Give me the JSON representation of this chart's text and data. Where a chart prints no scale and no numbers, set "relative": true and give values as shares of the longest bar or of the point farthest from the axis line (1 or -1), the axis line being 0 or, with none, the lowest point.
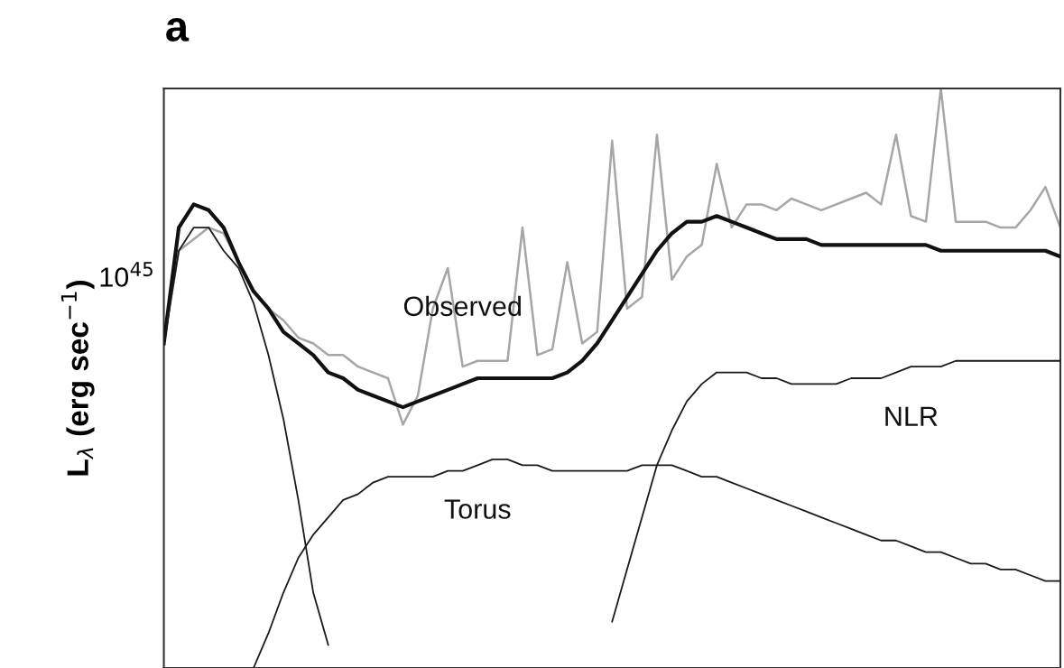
{
  "chart_data": {
    "type": "line",
    "title": "a",
    "ylabel": "L$_{λ}$ (erg sec$^{−1}$)",
    "relative": true,
    "grid": false,
    "legend": false,
    "marker": "none",
    "line_style": "solid",
    "annotations": [
      "10$^{45}$"
    ],
    "categories": [
      null,
      null,
      null,
      null,
      null,
      null,
      null,
      null,
      null,
      null,
      null,
      null,
      null,
      null,
      null,
      null,
      null,
      null,
      null,
      null,
      null,
      null,
      null,
      null,
      null,
      null,
      null,
      null,
      null,
      null,
      null,
      null,
      null,
      null,
      null,
      null,
      null,
      null,
      null,
      null,
      null,
      null,
      null,
      null,
      null,
      null,
      null,
      null,
      null,
      null,
      null,
      null,
      null,
      null,
      null,
      null,
      null,
      null,
      null,
      null,
      null
    ],
    "series": [
      {
        "name": "Observed",
        "color": "#a6a6a6",
        "values": [
          0.56,
          0.72,
          0.74,
          0.76,
          0.75,
          0.7,
          0.65,
          0.62,
          0.6,
          0.57,
          0.56,
          0.54,
          0.54,
          0.52,
          0.51,
          0.5,
          0.42,
          0.47,
          0.62,
          0.69,
          0.52,
          0.53,
          0.53,
          0.53,
          0.76,
          0.54,
          0.55,
          0.7,
          0.56,
          0.58,
          0.91,
          0.62,
          0.64,
          0.92,
          0.67,
          0.71,
          0.73,
          0.87,
          0.76,
          0.8,
          0.8,
          0.79,
          0.81,
          0.8,
          0.79,
          0.8,
          0.81,
          0.82,
          0.8,
          0.92,
          0.78,
          0.77,
          1.0,
          0.77,
          0.77,
          0.77,
          0.76,
          0.76,
          0.79,
          0.83,
          0.76
        ]
      },
      {
        "color": "#111111",
        "values": [
          0.56,
          0.76,
          0.8,
          0.79,
          0.76,
          0.7,
          0.65,
          0.62,
          0.58,
          0.56,
          0.54,
          0.51,
          0.5,
          0.48,
          0.47,
          0.46,
          0.45,
          0.46,
          0.47,
          0.48,
          0.49,
          0.5,
          0.5,
          0.5,
          0.5,
          0.5,
          0.5,
          0.51,
          0.53,
          0.56,
          0.6,
          0.64,
          0.68,
          0.72,
          0.75,
          0.77,
          0.77,
          0.78,
          0.77,
          0.76,
          0.75,
          0.74,
          0.74,
          0.74,
          0.73,
          0.73,
          0.73,
          0.73,
          0.73,
          0.73,
          0.73,
          0.73,
          0.72,
          0.72,
          0.72,
          0.72,
          0.72,
          0.72,
          0.72,
          0.72,
          0.71
        ]
      },
      {
        "color": "#1a1a1a",
        "values": [
          0.56,
          0.72,
          0.76,
          0.76,
          0.72,
          0.69,
          0.63,
          0.54,
          0.43,
          0.29,
          0.13,
          0.04,
          null,
          null,
          null,
          null,
          null,
          null,
          null,
          null,
          null,
          null,
          null,
          null,
          null,
          null,
          null,
          null,
          null,
          null,
          null,
          null,
          null,
          null,
          null,
          null,
          null,
          null,
          null,
          null,
          null,
          null,
          null,
          null,
          null,
          null,
          null,
          null,
          null,
          null,
          null,
          null,
          null,
          null,
          null,
          null,
          null,
          null,
          null,
          null,
          null
        ]
      },
      {
        "name": "Torus",
        "color": "#1a1a1a",
        "values": [
          null,
          null,
          null,
          null,
          null,
          null,
          0.0,
          0.06,
          0.13,
          0.19,
          0.23,
          0.26,
          0.29,
          0.3,
          0.32,
          0.33,
          0.33,
          0.33,
          0.33,
          0.34,
          0.34,
          0.35,
          0.36,
          0.36,
          0.35,
          0.35,
          0.34,
          0.34,
          0.34,
          0.34,
          0.34,
          0.34,
          0.35,
          0.35,
          0.35,
          0.34,
          0.33,
          0.33,
          0.32,
          0.31,
          0.3,
          0.29,
          0.28,
          0.27,
          0.26,
          0.25,
          0.24,
          0.23,
          0.22,
          0.22,
          0.21,
          0.2,
          0.2,
          0.19,
          0.18,
          0.18,
          0.17,
          0.17,
          0.16,
          0.15,
          0.15
        ]
      },
      {
        "name": "NLR",
        "color": "#1a1a1a",
        "values": [
          null,
          null,
          null,
          null,
          null,
          null,
          null,
          null,
          null,
          null,
          null,
          null,
          null,
          null,
          null,
          null,
          null,
          null,
          null,
          null,
          null,
          null,
          null,
          null,
          null,
          null,
          null,
          null,
          null,
          null,
          0.08,
          0.17,
          0.26,
          0.35,
          0.41,
          0.46,
          0.49,
          0.51,
          0.51,
          0.51,
          0.5,
          0.5,
          0.49,
          0.49,
          0.49,
          0.49,
          0.5,
          0.5,
          0.5,
          0.51,
          0.52,
          0.52,
          0.52,
          0.53,
          0.53,
          0.53,
          0.53,
          0.53,
          0.53,
          0.53,
          0.53
        ]
      }
    ]
  }
}
